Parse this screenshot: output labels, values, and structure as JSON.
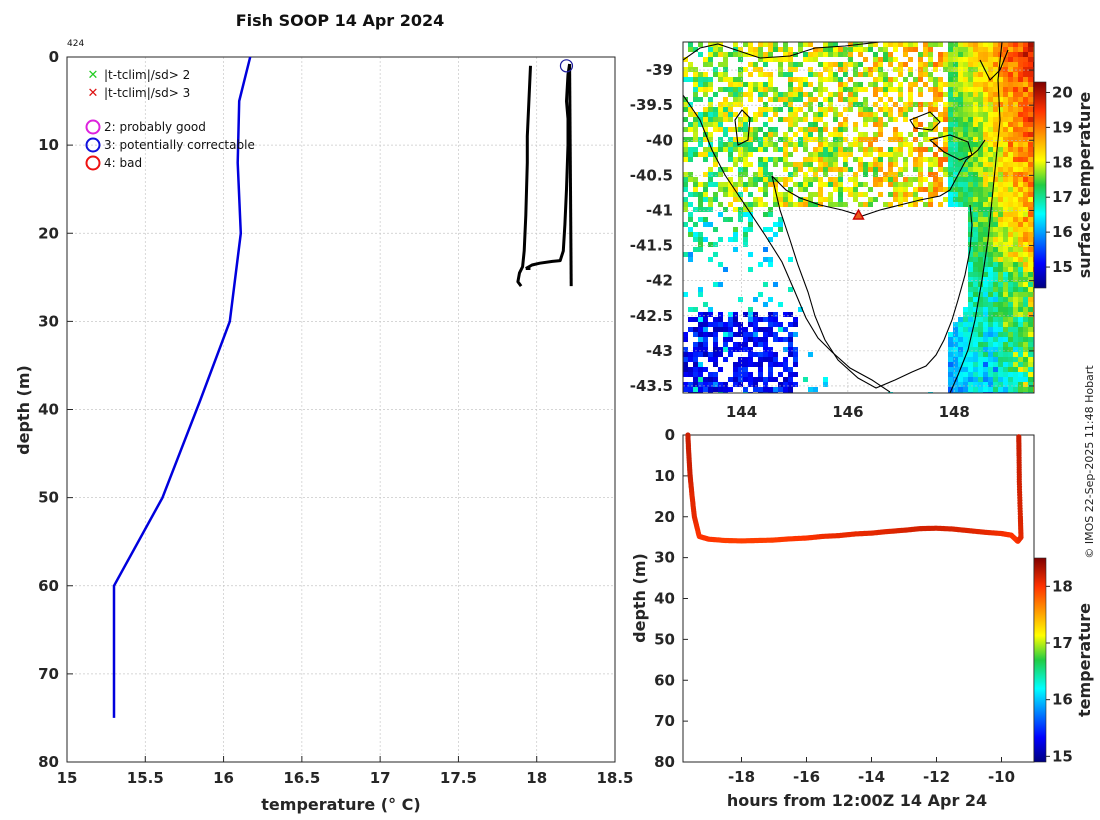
{
  "title": "Fish SOOP 14 Apr 2024",
  "profile_id": "424",
  "credit": "© IMOS 22-Sep-2025 11:48 Hobart",
  "legend": {
    "crosses": [
      {
        "label": "|t-tclim|/sd> 2",
        "color": "#22cc22"
      },
      {
        "label": "|t-tclim|/sd> 3",
        "color": "#dd1111"
      }
    ],
    "circles": [
      {
        "label": "2: probably good",
        "color": "#dd22dd"
      },
      {
        "label": "3: potentially correctable",
        "color": "#1111dd"
      },
      {
        "label": "4: bad",
        "color": "#ee1111"
      }
    ]
  },
  "colors": {
    "climatology": "#0000dd",
    "profile": "#000000",
    "marker": "#1a1a99",
    "transect": "#d45a00"
  },
  "chart_data": [
    {
      "name": "profile",
      "type": "line",
      "xlabel": "temperature (° C)",
      "ylabel": "depth (m)",
      "xlim": [
        15,
        18.5
      ],
      "ylim": [
        80,
        0
      ],
      "xticks": [
        "15",
        "15.5",
        "16",
        "16.5",
        "17",
        "17.5",
        "18",
        "18.5"
      ],
      "yticks": [
        "0",
        "10",
        "20",
        "30",
        "40",
        "50",
        "60",
        "70",
        "80"
      ],
      "grid": true,
      "series": [
        {
          "name": "climatology",
          "x": [
            16.17,
            16.1,
            16.09,
            16.11,
            16.04,
            15.85,
            15.61,
            15.3,
            15.3
          ],
          "y": [
            0,
            5,
            12,
            20,
            30,
            39,
            50,
            60,
            75
          ]
        },
        {
          "name": "profile down",
          "x": [
            17.96,
            17.95,
            17.94,
            17.94,
            17.93,
            17.92,
            17.91,
            17.89,
            17.88,
            17.9
          ],
          "y": [
            1,
            5,
            9,
            12,
            18,
            22,
            23.8,
            24.5,
            25.5,
            26
          ]
        },
        {
          "name": "profile up",
          "x": [
            17.93,
            17.97,
            18.02,
            18.1,
            18.15,
            18.17,
            18.18,
            18.19,
            18.2,
            18.2,
            18.19,
            18.2,
            18.21,
            18.22
          ],
          "y": [
            24,
            23.6,
            23.4,
            23.2,
            23.1,
            22,
            19,
            15,
            10,
            7,
            5,
            2,
            0.8,
            26
          ]
        }
      ],
      "marker": {
        "x": 18.19,
        "y": 1,
        "flag": "3: potentially correctable"
      }
    },
    {
      "name": "map",
      "type": "heatmap",
      "xticks": [
        "144",
        "146",
        "148"
      ],
      "yticks": [
        "-39",
        "-39.5",
        "-40",
        "-40.5",
        "-41",
        "-41.5",
        "-42",
        "-42.5",
        "-43",
        "-43.5"
      ],
      "xlim": [
        142.9,
        149.5
      ],
      "ylim": [
        -43.6,
        -38.6
      ],
      "colorbar_label": "surface temperature",
      "colorbar_ticks": [
        "15",
        "16",
        "17",
        "18",
        "19",
        "20"
      ],
      "colorbar_range": [
        14.4,
        20.3
      ],
      "station": {
        "lon": 146.2,
        "lat": -41.08
      }
    },
    {
      "name": "transect",
      "type": "scatter",
      "xlabel": "hours from 12:00Z 14 Apr 24",
      "ylabel": "depth (m)",
      "xlim": [
        -19.8,
        -9.0
      ],
      "ylim": [
        80,
        0
      ],
      "xticks": [
        "-18",
        "-16",
        "-14",
        "-12",
        "-10"
      ],
      "yticks": [
        "0",
        "10",
        "20",
        "30",
        "40",
        "50",
        "60",
        "70",
        "80"
      ],
      "colorbar_label": "temperature",
      "colorbar_ticks": [
        "15",
        "16",
        "17",
        "18"
      ],
      "colorbar_range": [
        14.9,
        18.5
      ],
      "x": [
        -19.65,
        -19.62,
        -19.58,
        -19.52,
        -19.45,
        -19.3,
        -19.0,
        -18.5,
        -18.0,
        -17.5,
        -17.0,
        -16.5,
        -16.0,
        -15.5,
        -15.0,
        -14.5,
        -14.0,
        -13.5,
        -13.0,
        -12.5,
        -12.0,
        -11.5,
        -11.0,
        -10.5,
        -10.0,
        -9.7,
        -9.5,
        -9.4,
        -9.42,
        -9.45,
        -9.46,
        -9.47
      ],
      "y": [
        0,
        5,
        10,
        15,
        20,
        24.8,
        25.5,
        25.8,
        25.9,
        25.8,
        25.7,
        25.4,
        25.2,
        24.8,
        24.6,
        24.2,
        24.0,
        23.6,
        23.3,
        22.9,
        22.8,
        23.0,
        23.4,
        23.8,
        24.1,
        24.5,
        26.0,
        25.0,
        20,
        12,
        5,
        0
      ],
      "temperature": [
        18.2,
        18.2,
        18.2,
        18.1,
        18.1,
        18.0,
        18.0,
        17.95,
        17.95,
        17.95,
        17.95,
        17.98,
        18.0,
        18.05,
        18.08,
        18.08,
        18.1,
        18.12,
        18.15,
        18.17,
        18.17,
        18.15,
        18.13,
        18.1,
        18.05,
        18.0,
        18.0,
        18.1,
        18.15,
        18.18,
        18.2,
        18.2
      ]
    }
  ]
}
